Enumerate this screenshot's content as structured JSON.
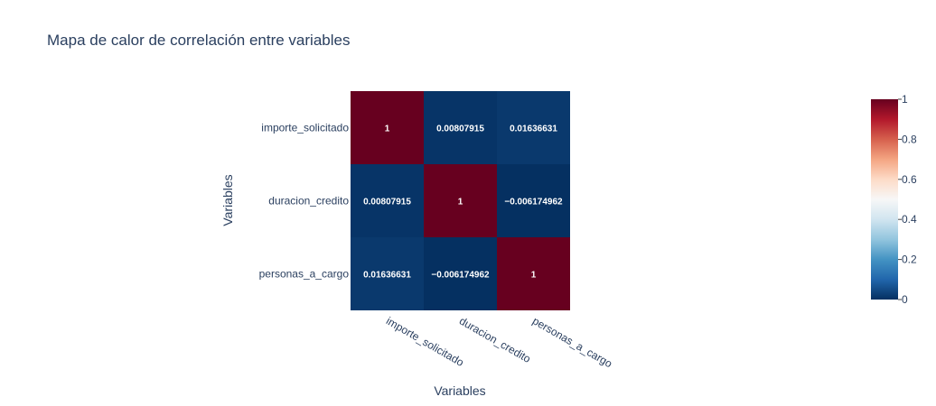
{
  "chart_data": {
    "type": "heatmap",
    "title": "Mapa de calor de correlación entre variables",
    "xlabel": "Variables",
    "ylabel": "Variables",
    "x": [
      "importe_solicitado",
      "duracion_credito",
      "personas_a_cargo"
    ],
    "y": [
      "importe_solicitado",
      "duracion_credito",
      "personas_a_cargo"
    ],
    "z": [
      [
        1,
        0.00807915,
        0.01636631
      ],
      [
        0.00807915,
        1,
        -0.006174962
      ],
      [
        0.01636631,
        -0.006174962,
        1
      ]
    ],
    "text": [
      [
        "1",
        "0.00807915",
        "0.01636631"
      ],
      [
        "0.00807915",
        "1",
        "−0.006174962"
      ],
      [
        "0.01636631",
        "−0.006174962",
        "1"
      ]
    ],
    "zlim": [
      0,
      1
    ],
    "colorscale": "RdBu_r",
    "colors": [
      "#053061",
      "#2166ac",
      "#4393c3",
      "#92c5de",
      "#d1e5f0",
      "#f7f7f7",
      "#fddbc7",
      "#f4a582",
      "#d6604d",
      "#b2182b",
      "#67001f"
    ],
    "colorbar": {
      "ticks": [
        0,
        0.2,
        0.4,
        0.6,
        0.8,
        1
      ],
      "tick_labels": [
        "0",
        "0.2",
        "0.4",
        "0.6",
        "0.8",
        "1"
      ]
    }
  }
}
